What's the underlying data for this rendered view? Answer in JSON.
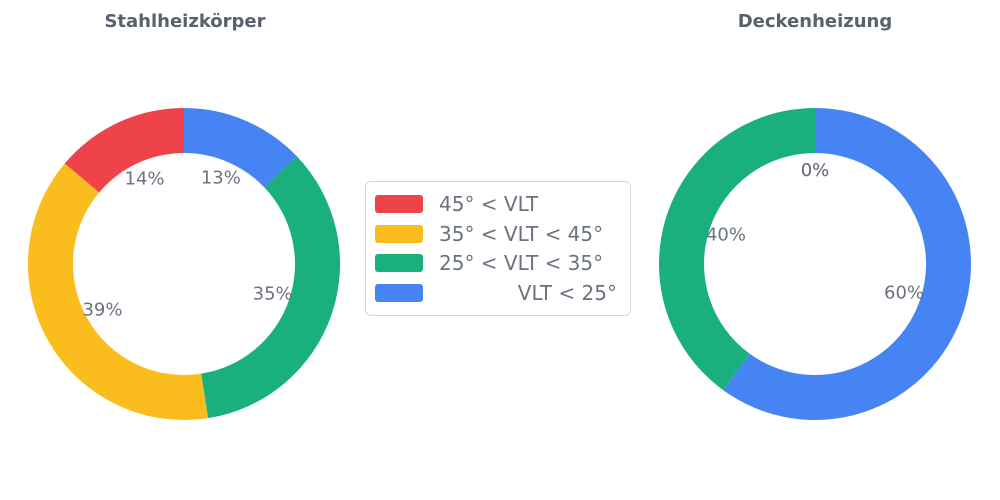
{
  "page": {
    "background": "#ffffff"
  },
  "styles": {
    "title_color": "#59616F",
    "label_color": "#6B7280",
    "legend_border": "#D6D6DA"
  },
  "chart_data": [
    {
      "type": "pie",
      "subtype": "donut",
      "title": "Stahlheizkörper",
      "start_angle_deg": 90,
      "direction": "counterclockwise",
      "inner_radius_ratio": 0.71,
      "categories": [
        "45° < VLT",
        "35° < VLT < 45°",
        "25° < VLT < 35°",
        "VLT < 25°"
      ],
      "values_pct": [
        14,
        39,
        35,
        13
      ],
      "pct_labels": [
        "14%",
        "39%",
        "35%",
        "13%"
      ],
      "colors": [
        "#EE4348",
        "#FBBC1E",
        "#19B07D",
        "#4684F3"
      ]
    },
    {
      "type": "pie",
      "subtype": "donut",
      "title": "Deckenheizung",
      "start_angle_deg": 90,
      "direction": "counterclockwise",
      "inner_radius_ratio": 0.71,
      "categories": [
        "45° < VLT",
        "35° < VLT < 45°",
        "25° < VLT < 35°",
        "VLT < 25°"
      ],
      "values_pct": [
        0,
        0,
        40,
        60
      ],
      "pct_labels": [
        "0%",
        "0%",
        "40%",
        "60%"
      ],
      "colors": [
        "#EE4348",
        "#FBBC1E",
        "#19B07D",
        "#4684F3"
      ]
    }
  ],
  "legend": {
    "position": "center",
    "items": [
      {
        "label": "45° < VLT",
        "color": "#EE4348",
        "align": "left"
      },
      {
        "label": "35° < VLT < 45°",
        "color": "#FBBC1E",
        "align": "left"
      },
      {
        "label": "25° < VLT < 35°",
        "color": "#19B07D",
        "align": "left"
      },
      {
        "label": "VLT < 25°",
        "color": "#4684F3",
        "align": "right"
      }
    ]
  }
}
